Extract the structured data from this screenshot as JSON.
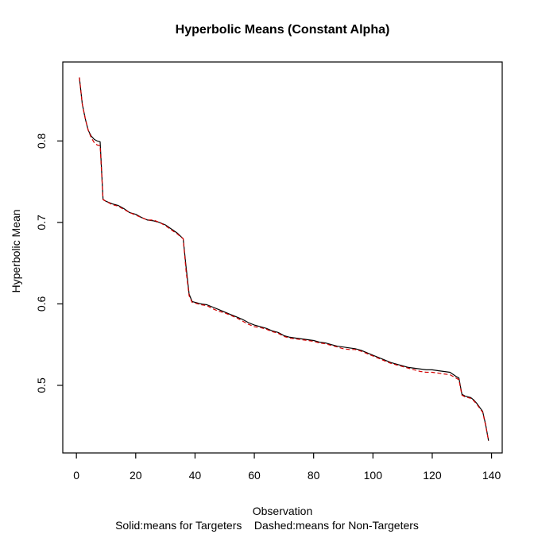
{
  "figure": {
    "title": "Hyperbolic Means (Constant Alpha)",
    "xlabel": "Observation",
    "ylabel": "Hyperbolic Mean",
    "caption": "Solid:means for Targeters    Dashed:means for Non-Targeters"
  },
  "chart_data": {
    "type": "line",
    "title": "Hyperbolic Means (Constant Alpha)",
    "xlabel": "Observation",
    "ylabel": "Hyperbolic Mean",
    "caption": "Solid:means for Targeters    Dashed:means for Non-Targeters",
    "grid": false,
    "legend": "none",
    "xlim": [
      -4.6,
      143.6
    ],
    "ylim": [
      0.417,
      0.897
    ],
    "x_ticks": [
      0,
      20,
      40,
      60,
      80,
      100,
      120,
      140
    ],
    "y_ticks": [
      0.5,
      0.6,
      0.7,
      0.8
    ],
    "colors": {
      "targeters": "#000000",
      "non_targeters": "#d40000"
    },
    "x": [
      1,
      2,
      3,
      4,
      5,
      6,
      7,
      8,
      9,
      10,
      12,
      14,
      16,
      18,
      20,
      22,
      24,
      26,
      28,
      30,
      32,
      34,
      36,
      37,
      38,
      39,
      40,
      42,
      44,
      46,
      48,
      50,
      52,
      54,
      56,
      58,
      60,
      62,
      64,
      66,
      68,
      70,
      72,
      74,
      76,
      78,
      80,
      82,
      84,
      86,
      88,
      90,
      92,
      94,
      96,
      98,
      100,
      102,
      104,
      106,
      108,
      110,
      112,
      114,
      116,
      118,
      120,
      122,
      124,
      126,
      128,
      129,
      130,
      131,
      132,
      133,
      134,
      135,
      136,
      137,
      138,
      139
    ],
    "series": [
      {
        "name": "Targeters",
        "style": "solid",
        "color": "#000000",
        "values": [
          0.878,
          0.845,
          0.827,
          0.813,
          0.806,
          0.802,
          0.8,
          0.799,
          0.728,
          0.726,
          0.723,
          0.721,
          0.717,
          0.712,
          0.71,
          0.706,
          0.703,
          0.702,
          0.7,
          0.697,
          0.692,
          0.687,
          0.68,
          0.645,
          0.612,
          0.603,
          0.602,
          0.6,
          0.599,
          0.596,
          0.593,
          0.59,
          0.587,
          0.584,
          0.581,
          0.577,
          0.574,
          0.572,
          0.57,
          0.567,
          0.565,
          0.561,
          0.559,
          0.558,
          0.557,
          0.556,
          0.555,
          0.553,
          0.552,
          0.55,
          0.548,
          0.547,
          0.546,
          0.545,
          0.543,
          0.54,
          0.537,
          0.534,
          0.531,
          0.528,
          0.526,
          0.524,
          0.522,
          0.521,
          0.52,
          0.519,
          0.519,
          0.518,
          0.517,
          0.516,
          0.511,
          0.509,
          0.489,
          0.487,
          0.486,
          0.485,
          0.482,
          0.478,
          0.473,
          0.468,
          0.452,
          0.432
        ]
      },
      {
        "name": "Non-Targeters",
        "style": "dashed",
        "color": "#d40000",
        "values": [
          0.878,
          0.845,
          0.827,
          0.813,
          0.804,
          0.798,
          0.795,
          0.794,
          0.728,
          0.726,
          0.722,
          0.72,
          0.716,
          0.712,
          0.709,
          0.706,
          0.703,
          0.703,
          0.7,
          0.696,
          0.691,
          0.686,
          0.68,
          0.64,
          0.61,
          0.602,
          0.601,
          0.599,
          0.598,
          0.594,
          0.591,
          0.589,
          0.586,
          0.583,
          0.579,
          0.575,
          0.572,
          0.571,
          0.569,
          0.566,
          0.564,
          0.56,
          0.558,
          0.557,
          0.556,
          0.555,
          0.554,
          0.552,
          0.551,
          0.549,
          0.547,
          0.545,
          0.544,
          0.544,
          0.542,
          0.539,
          0.536,
          0.533,
          0.53,
          0.527,
          0.525,
          0.523,
          0.521,
          0.519,
          0.517,
          0.516,
          0.516,
          0.515,
          0.514,
          0.513,
          0.509,
          0.507,
          0.488,
          0.486,
          0.485,
          0.484,
          0.481,
          0.477,
          0.472,
          0.467,
          0.451,
          0.432
        ]
      }
    ]
  }
}
